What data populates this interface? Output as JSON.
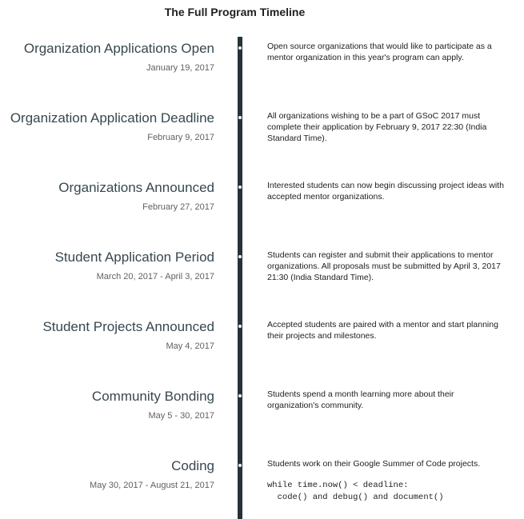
{
  "page": {
    "title": "The Full Program Timeline"
  },
  "events": [
    {
      "title": "Organization Applications Open",
      "date": "January 19, 2017",
      "description": "Open source organizations that would like to participate as a mentor organization in this year's program can apply."
    },
    {
      "title": "Organization Application Deadline",
      "date": "February 9, 2017",
      "description": "All organizations wishing to be a part of GSoC 2017 must complete their application by February 9, 2017 22:30 (India Standard Time)."
    },
    {
      "title": "Organizations Announced",
      "date": "February 27, 2017",
      "description": "Interested students can now begin discussing project ideas with accepted mentor organizations."
    },
    {
      "title": "Student Application Period",
      "date": "March 20, 2017 - April 3, 2017",
      "description": "Students can register and submit their applications to mentor organizations. All proposals must be submitted by April 3, 2017 21:30 (India Standard Time)."
    },
    {
      "title": "Student Projects Announced",
      "date": "May 4, 2017",
      "description": "Accepted students are paired with a mentor and start planning their projects and milestones."
    },
    {
      "title": "Community Bonding",
      "date": "May 5 - 30, 2017",
      "description": "Students spend a month learning more about their organization's community."
    },
    {
      "title": "Coding",
      "date": "May 30, 2017 - August 21, 2017",
      "description": "Students work on their Google Summer of Code projects.",
      "code": "while time.now() < deadline:\n  code() and debug() and document()"
    }
  ]
}
